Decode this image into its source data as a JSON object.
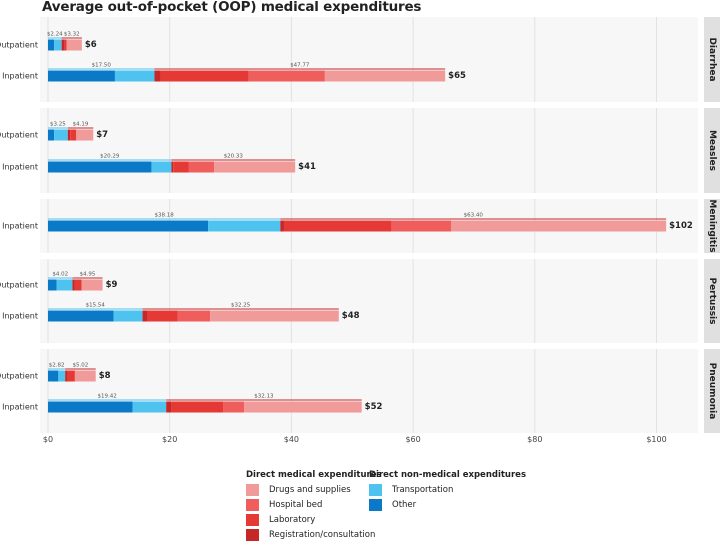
{
  "title": "Average out-of-pocket (OOP) medical expenditures",
  "chart_data": {
    "type": "bar",
    "orientation": "horizontal",
    "stacked": true,
    "title": "Average out-of-pocket (OOP) medical expenditures",
    "xlim": [
      0,
      105
    ],
    "xticks": [
      0,
      20,
      40,
      60,
      80,
      100
    ],
    "xtick_labels": [
      "$0",
      "$20",
      "$40",
      "$60",
      "$80",
      "$100"
    ],
    "component_order": [
      "Other",
      "Transportation",
      "Registration/consultation",
      "Laboratory",
      "Hospital bed",
      "Drugs and supplies"
    ],
    "colors": {
      "Other": "#0a7ac8",
      "Transportation": "#4fc3ef",
      "Registration/consultation": "#c62828",
      "Laboratory": "#e53935",
      "Hospital bed": "#ef5d5d",
      "Drugs and supplies": "#f19a9a"
    },
    "panels": [
      {
        "disease": "Diarrhea",
        "rows": [
          {
            "setting": "Outpatient",
            "total_label": "$6",
            "nonmedical_label": "$2.24",
            "medical_label": "$3.32",
            "components": {
              "Other": 1.0,
              "Transportation": 1.24,
              "Registration/consultation": 0.5,
              "Laboratory": 0.3,
              "Hospital bed": 0.0,
              "Drugs and supplies": 2.52
            }
          },
          {
            "setting": "Inpatient",
            "total_label": "$65",
            "nonmedical_label": "$17.50",
            "medical_label": "$47.77",
            "components": {
              "Other": 11.0,
              "Transportation": 6.5,
              "Registration/consultation": 1.0,
              "Laboratory": 14.5,
              "Hospital bed": 12.5,
              "Drugs and supplies": 19.77
            }
          }
        ]
      },
      {
        "disease": "Measles",
        "rows": [
          {
            "setting": "Outpatient",
            "total_label": "$7",
            "nonmedical_label": "$3.25",
            "medical_label": "$4.19",
            "components": {
              "Other": 1.0,
              "Transportation": 2.25,
              "Registration/consultation": 0.4,
              "Laboratory": 1.0,
              "Hospital bed": 0.0,
              "Drugs and supplies": 2.79
            }
          },
          {
            "setting": "Inpatient",
            "total_label": "$41",
            "nonmedical_label": "$20.29",
            "medical_label": "$20.33",
            "components": {
              "Other": 17.0,
              "Transportation": 3.29,
              "Registration/consultation": 0.3,
              "Laboratory": 2.5,
              "Hospital bed": 4.2,
              "Drugs and supplies": 13.33
            }
          }
        ]
      },
      {
        "disease": "Meningitis",
        "rows": [
          {
            "setting": "Inpatient",
            "total_label": "$102",
            "nonmedical_label": "$38.18",
            "medical_label": "$63.40",
            "components": {
              "Other": 26.3,
              "Transportation": 11.88,
              "Registration/consultation": 0.6,
              "Laboratory": 17.7,
              "Hospital bed": 9.8,
              "Drugs and supplies": 35.3
            }
          }
        ]
      },
      {
        "disease": "Pertussis",
        "rows": [
          {
            "setting": "Outpatient",
            "total_label": "$9",
            "nonmedical_label": "$4.02",
            "medical_label": "$4.95",
            "components": {
              "Other": 1.4,
              "Transportation": 2.62,
              "Registration/consultation": 0.4,
              "Laboratory": 1.1,
              "Hospital bed": 0.0,
              "Drugs and supplies": 3.45
            }
          },
          {
            "setting": "Inpatient",
            "total_label": "$48",
            "nonmedical_label": "$15.54",
            "medical_label": "$32.25",
            "components": {
              "Other": 10.8,
              "Transportation": 4.74,
              "Registration/consultation": 0.8,
              "Laboratory": 5.0,
              "Hospital bed": 5.3,
              "Drugs and supplies": 21.15
            }
          }
        ]
      },
      {
        "disease": "Pneumonia",
        "rows": [
          {
            "setting": "Outpatient",
            "total_label": "$8",
            "nonmedical_label": "$2.82",
            "medical_label": "$5.02",
            "components": {
              "Other": 1.7,
              "Transportation": 1.12,
              "Registration/consultation": 0.4,
              "Laboratory": 1.2,
              "Hospital bed": 0.0,
              "Drugs and supplies": 3.42
            }
          },
          {
            "setting": "Inpatient",
            "total_label": "$52",
            "nonmedical_label": "$19.42",
            "medical_label": "$32.13",
            "components": {
              "Other": 13.9,
              "Transportation": 5.52,
              "Registration/consultation": 0.8,
              "Laboratory": 8.6,
              "Hospital bed": 3.4,
              "Drugs and supplies": 19.33
            }
          }
        ]
      }
    ]
  },
  "legend": {
    "medical_title": "Direct medical expenditures",
    "medical_items": [
      "Drugs and supplies",
      "Hospital bed",
      "Laboratory",
      "Registration/consultation"
    ],
    "nonmedical_title": "Direct non-medical expenditures",
    "nonmedical_items": [
      "Transportation",
      "Other"
    ]
  }
}
